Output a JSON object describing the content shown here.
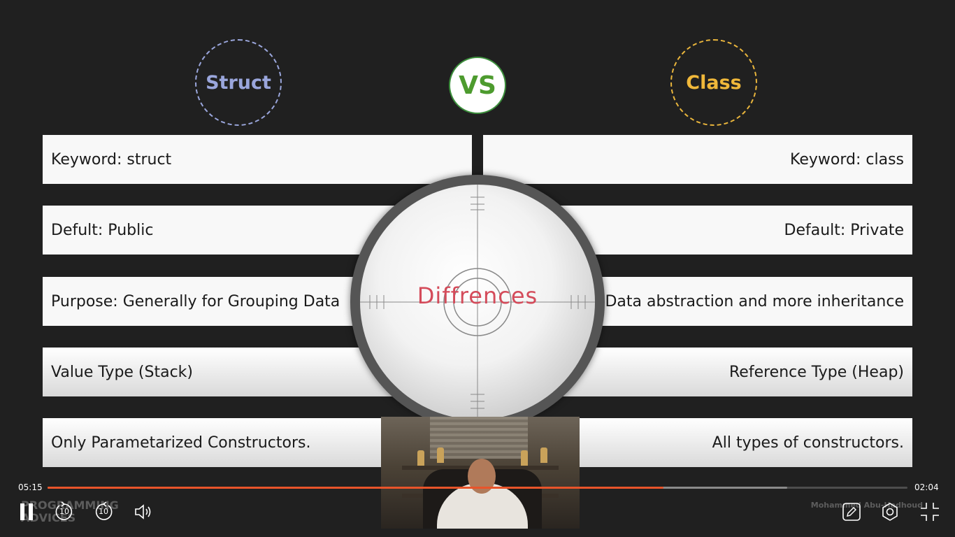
{
  "slide": {
    "left_header": "Struct",
    "vs_label": "VS",
    "right_header": "Class",
    "center_title": "Diffrences",
    "rows": [
      {
        "left": "Keyword: struct",
        "right": "Keyword: class"
      },
      {
        "left": "Defult: Public",
        "right": "Default: Private"
      },
      {
        "left": "Purpose: Generally for Grouping Data",
        "right": "Data abstraction and more inheritance"
      },
      {
        "left": "Value Type (Stack)",
        "right": "Reference Type (Heap)"
      },
      {
        "left": "Only Parametarized Constructors.",
        "right": "All types of constructors."
      }
    ],
    "colors": {
      "struct": "#9aa6dc",
      "class": "#f0b83a",
      "vs": "#4d9b2e",
      "title": "#d44b5a"
    }
  },
  "player": {
    "current_time": "05:15",
    "duration": "02:04",
    "progress_fraction": 0.716,
    "buffered_fraction": 0.86,
    "skip_back_seconds": "10",
    "skip_forward_seconds": "10",
    "accent_color": "#e8542a",
    "icons": {
      "play_pause": "pause-icon",
      "rewind": "rewind-10-icon",
      "forward": "forward-10-icon",
      "volume": "volume-icon",
      "annotate": "pencil-icon",
      "settings": "settings-icon",
      "fullscreen": "exit-fullscreen-icon"
    }
  },
  "watermark": {
    "brand": "PROGRAMMING ADVICES",
    "author": "Mohammed Abu-Hadhoud"
  }
}
